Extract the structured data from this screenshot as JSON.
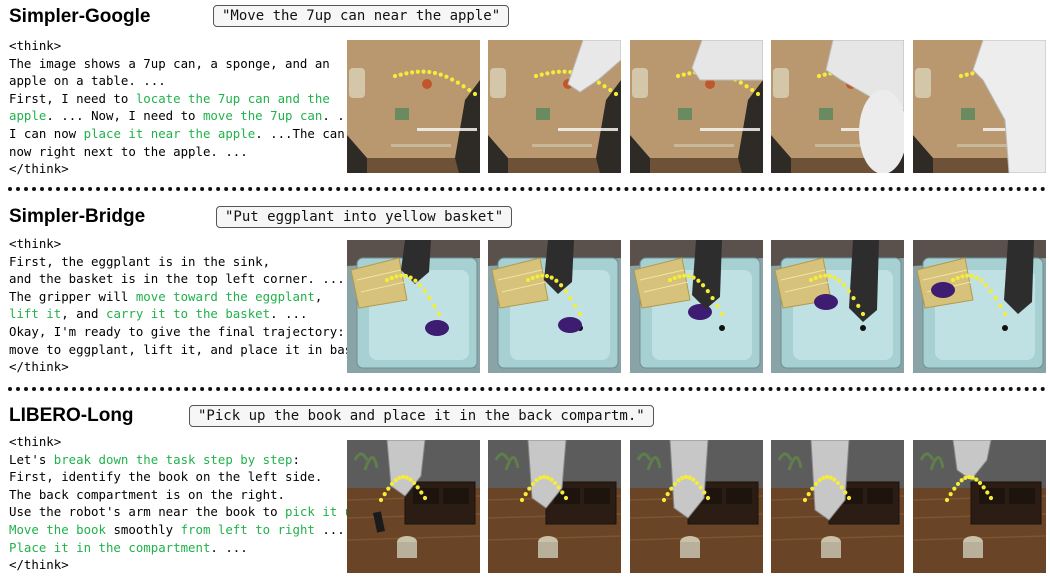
{
  "sections": [
    {
      "title": "Simpler-Google",
      "prompt": "\"Move the 7up can near the apple\"",
      "reasoning": [
        [
          {
            "t": "<think>"
          }
        ],
        [
          {
            "t": "The image shows a 7up can, a sponge, and an"
          }
        ],
        [
          {
            "t": "apple on a table. ..."
          }
        ],
        [
          {
            "t": "First, I need to "
          },
          {
            "t": "locate the 7up can and the",
            "g": true
          }
        ],
        [
          {
            "t": "apple",
            "g": true
          },
          {
            "t": ". ... Now, I need to "
          },
          {
            "t": "move the 7up can",
            "g": true
          },
          {
            "t": ". ..."
          }
        ],
        [
          {
            "t": "I can now "
          },
          {
            "t": "place it near the apple",
            "g": true
          },
          {
            "t": ". ...The can is"
          }
        ],
        [
          {
            "t": "now right next to the apple. ..."
          }
        ],
        [
          {
            "t": "</think>"
          }
        ]
      ],
      "scene": "google"
    },
    {
      "title": "Simpler-Bridge",
      "prompt": "\"Put eggplant into yellow basket\"",
      "reasoning": [
        [
          {
            "t": "<think>"
          }
        ],
        [
          {
            "t": "First, the eggplant is in the sink,"
          }
        ],
        [
          {
            "t": "and the basket is in the top left corner. ..."
          }
        ],
        [
          {
            "t": "The gripper will "
          },
          {
            "t": "move toward the eggplant",
            "g": true
          },
          {
            "t": ","
          }
        ],
        [
          {
            "t": "lift it",
            "g": true
          },
          {
            "t": ", and "
          },
          {
            "t": "carry it to the basket",
            "g": true
          },
          {
            "t": ". ..."
          }
        ],
        [
          {
            "t": "Okay, I'm ready to give the final trajectory:"
          }
        ],
        [
          {
            "t": "move to eggplant, lift it, and place it in basket."
          }
        ],
        [
          {
            "t": "</think>"
          }
        ]
      ],
      "scene": "bridge"
    },
    {
      "title": "LIBERO-Long",
      "prompt": "\"Pick up the book and place it in the back compartm.\"",
      "reasoning": [
        [
          {
            "t": "<think>"
          }
        ],
        [
          {
            "t": "Let's "
          },
          {
            "t": "break down the task step by step",
            "g": true
          },
          {
            "t": ":"
          }
        ],
        [
          {
            "t": "First, identify the book on the left side."
          }
        ],
        [
          {
            "t": "The back compartment is on the right."
          }
        ],
        [
          {
            "t": "Use the robot's arm near the book to "
          },
          {
            "t": "pick it up",
            "g": true
          },
          {
            "t": " .."
          }
        ],
        [
          {
            "t": "Move the book",
            "g": true
          },
          {
            "t": " smoothly "
          },
          {
            "t": "from left to right",
            "g": true
          },
          {
            "t": " ..."
          }
        ],
        [
          {
            "t": "Place it in the compartment",
            "g": true
          },
          {
            "t": ". ..."
          }
        ],
        [
          {
            "t": "</think>"
          }
        ]
      ],
      "scene": "libero"
    }
  ],
  "colors": {
    "highlight": "#22b14c",
    "trajectory": "#f5ec3a",
    "divider": "#111111"
  }
}
